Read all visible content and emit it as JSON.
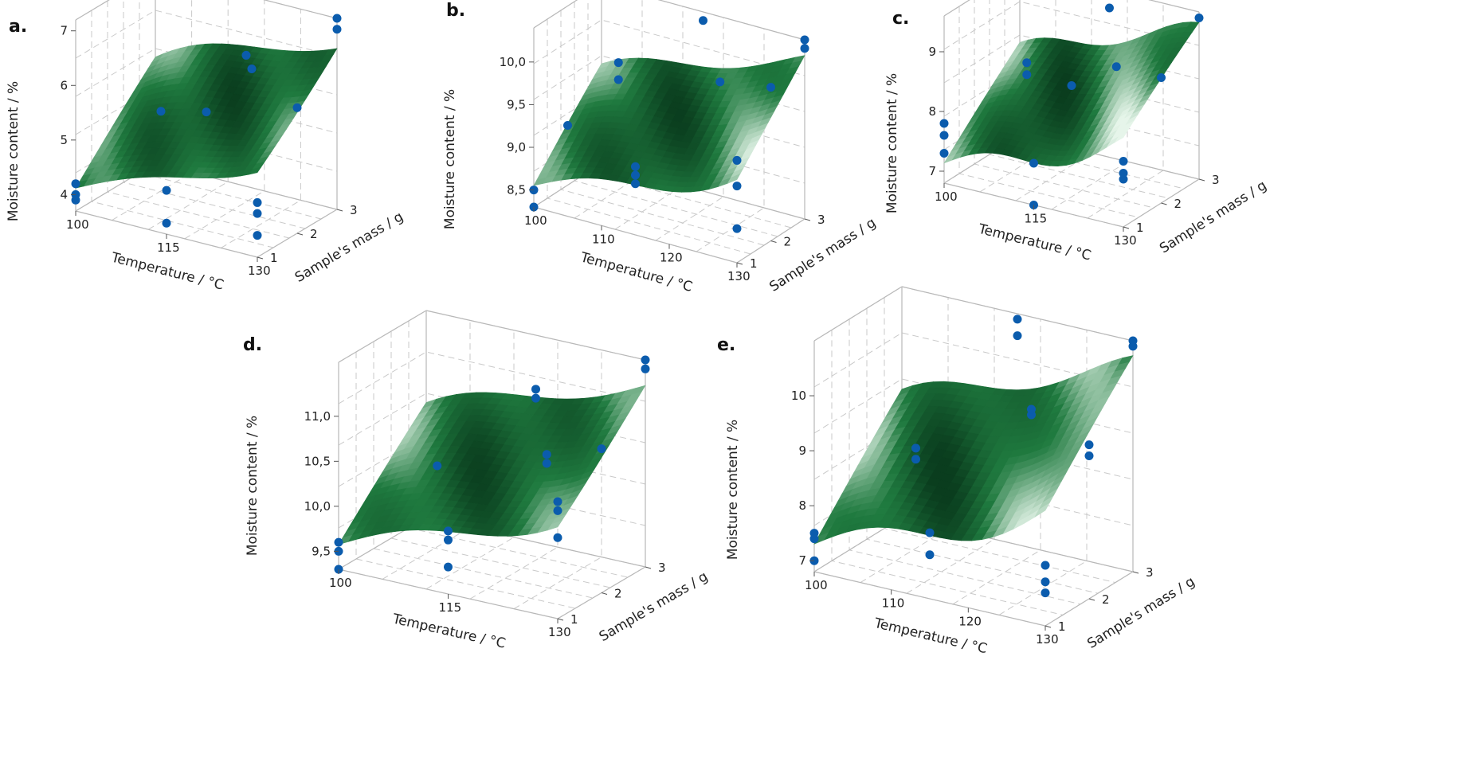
{
  "chart_data": [
    {
      "id": "a",
      "type": "surface3d",
      "panel_label": "a.",
      "xlabel": "Temperature / °C",
      "ylabel": "Sample's mass / g",
      "zlabel": "Moisture content / %",
      "xticks": [
        "100",
        "115",
        "130"
      ],
      "yticks": [
        "1",
        "2",
        "3"
      ],
      "zticks": [
        "4",
        "5",
        "6",
        "7"
      ],
      "xlim": [
        100,
        130
      ],
      "ylim": [
        1,
        3
      ],
      "zlim": [
        3.7,
        7.2
      ],
      "series": [
        {
          "x": [
            100,
            100,
            100,
            107.5,
            115,
            115,
            115,
            115,
            122.5,
            130,
            130,
            130,
            130,
            130,
            130
          ],
          "y": [
            1,
            1,
            1,
            2,
            3,
            1,
            1,
            2,
            2,
            1,
            1,
            1,
            2,
            3,
            3
          ],
          "z": [
            4.0,
            3.9,
            4.2,
            5.3,
            6.1,
            3.9,
            4.5,
            5.5,
            6.5,
            4.1,
            4.5,
            4.7,
            6.0,
            7.0,
            7.2
          ]
        }
      ]
    },
    {
      "id": "b",
      "type": "surface3d",
      "panel_label": "b.",
      "xlabel": "Temperature / °C",
      "ylabel": "Sample's mass / g",
      "zlabel": "Moisture content / %",
      "xticks": [
        "100",
        "110",
        "120",
        "130"
      ],
      "yticks": [
        "1",
        "2",
        "3"
      ],
      "zticks": [
        "8,5",
        "9,0",
        "9,5",
        "10,0"
      ],
      "xlim": [
        100,
        130
      ],
      "ylim": [
        1,
        3
      ],
      "zlim": [
        8.3,
        10.4
      ],
      "series": [
        {
          "x": [
            100,
            100,
            100,
            107.5,
            107.5,
            115,
            115,
            115,
            115,
            122.5,
            130,
            130,
            130,
            130,
            130,
            130
          ],
          "y": [
            1,
            1,
            2,
            2,
            2,
            3,
            1,
            1,
            1,
            2,
            1,
            1,
            1,
            2,
            3,
            3
          ],
          "z": [
            8.3,
            8.5,
            9.0,
            9.7,
            9.9,
            10.3,
            8.9,
            9.0,
            9.1,
            10.0,
            8.7,
            9.2,
            9.5,
            10.1,
            10.4,
            10.3
          ]
        }
      ]
    },
    {
      "id": "c",
      "type": "surface3d",
      "panel_label": "c.",
      "xlabel": "Temperature / °C",
      "ylabel": "Sample's mass / g",
      "zlabel": "Moisture content / %",
      "xticks": [
        "100",
        "115",
        "130"
      ],
      "yticks": [
        "1",
        "2",
        "3"
      ],
      "zticks": [
        "7",
        "8",
        "9"
      ],
      "xlim": [
        100,
        130
      ],
      "ylim": [
        1,
        3
      ],
      "zlim": [
        6.8,
        9.6
      ],
      "series": [
        {
          "x": [
            100,
            100,
            100,
            107.5,
            107.5,
            115,
            115,
            115,
            115,
            122.5,
            130,
            130,
            130,
            130,
            130
          ],
          "y": [
            1,
            1,
            1,
            2,
            2,
            3,
            1,
            1,
            2,
            2,
            1,
            1,
            1,
            2,
            3
          ],
          "z": [
            7.3,
            7.6,
            7.8,
            8.4,
            8.6,
            9.3,
            6.8,
            7.5,
            8.4,
            8.9,
            7.6,
            7.7,
            7.9,
            8.9,
            9.5
          ]
        }
      ]
    },
    {
      "id": "d",
      "type": "surface3d",
      "panel_label": "d.",
      "xlabel": "Temperature / °C",
      "ylabel": "Sample's mass / g",
      "zlabel": "Moisture content / %",
      "xticks": [
        "100",
        "115",
        "130"
      ],
      "yticks": [
        "1",
        "2",
        "3"
      ],
      "zticks": [
        "9,5",
        "10,0",
        "10,5",
        "11,0"
      ],
      "xlim": [
        100,
        130
      ],
      "ylim": [
        1,
        3
      ],
      "zlim": [
        9.3,
        11.6
      ],
      "series": [
        {
          "x": [
            100,
            100,
            100,
            107.5,
            115,
            115,
            115,
            115,
            115,
            122.5,
            122.5,
            130,
            130,
            130,
            130,
            130,
            130
          ],
          "y": [
            1,
            1,
            1,
            2,
            3,
            3,
            1,
            1,
            1,
            2,
            2,
            1,
            1,
            1,
            2,
            3,
            3
          ],
          "z": [
            9.3,
            9.5,
            9.6,
            10.3,
            10.9,
            11.0,
            9.6,
            9.9,
            10.0,
            10.6,
            10.7,
            10.2,
            10.5,
            10.6,
            10.9,
            11.5,
            11.6
          ]
        }
      ]
    },
    {
      "id": "e",
      "type": "surface3d",
      "panel_label": "e.",
      "xlabel": "Temperature / °C",
      "ylabel": "Sample's mass / g",
      "zlabel": "Moisture content / %",
      "xticks": [
        "100",
        "110",
        "120",
        "130"
      ],
      "yticks": [
        "1",
        "2",
        "3"
      ],
      "zticks": [
        "7",
        "8",
        "9",
        "10"
      ],
      "xlim": [
        100,
        130
      ],
      "ylim": [
        1,
        3
      ],
      "zlim": [
        6.8,
        11.0
      ],
      "series": [
        {
          "x": [
            100,
            100,
            100,
            107.5,
            107.5,
            115,
            115,
            115,
            115,
            122.5,
            122.5,
            130,
            130,
            130,
            130,
            130,
            130,
            130
          ],
          "y": [
            1,
            1,
            1,
            2,
            2,
            3,
            3,
            1,
            1,
            2,
            2,
            1,
            1,
            1,
            2,
            2,
            3,
            3
          ],
          "z": [
            7.0,
            7.4,
            7.5,
            8.6,
            8.8,
            10.6,
            10.9,
            7.6,
            8.0,
            9.9,
            10.0,
            7.4,
            7.6,
            7.9,
            9.4,
            9.6,
            10.9,
            11.0
          ]
        }
      ]
    }
  ],
  "colors": {
    "points": "#0b5cad",
    "surface_dark": "#0a3d1e",
    "surface_mid": "#1f7a3f",
    "surface_light": "#e6f5ea"
  }
}
